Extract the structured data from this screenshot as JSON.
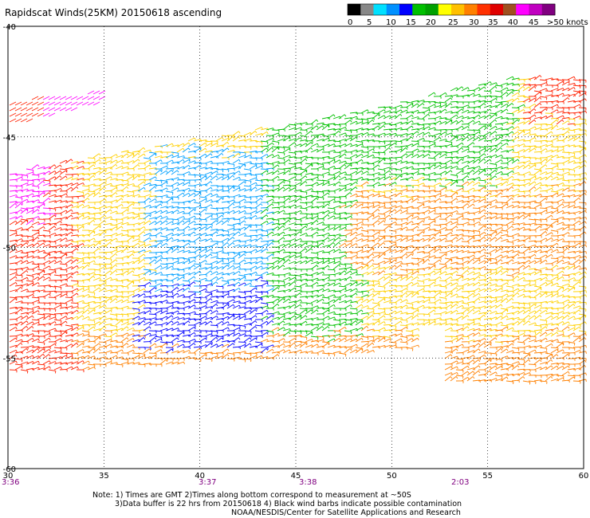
{
  "title": "Rapidscat Winds(25KM) 20150618 ascending",
  "legend": {
    "unit_label": ">50 knots",
    "tick_labels": [
      "0",
      "5",
      "10",
      "15",
      "20",
      "25",
      "30",
      "35",
      "40",
      "45"
    ],
    "colors": [
      "#000000",
      "#888888",
      "#00e0ff",
      "#0090ff",
      "#0000ff",
      "#00c000",
      "#00a000",
      "#ffff00",
      "#ffc000",
      "#ff8000",
      "#ff3000",
      "#e00000",
      "#a05020",
      "#ff00ff",
      "#c000c0",
      "#800080"
    ]
  },
  "axes": {
    "lon_ticks": [
      "30",
      "35",
      "40",
      "45",
      "50",
      "55",
      "60"
    ],
    "lat_ticks": [
      "-40",
      "-45",
      "-50",
      "-55",
      "-60"
    ],
    "lon_range": [
      30,
      60
    ],
    "lat_range": [
      -40,
      -60
    ]
  },
  "pass_times": [
    "3:36",
    "3:37",
    "3:38",
    "2:03"
  ],
  "notes": {
    "line1": "Note: 1) Times are GMT 2)Times along bottom correspond to measurement at ~50S",
    "line2": "3)Data buffer is 22 hrs from 20150618 4) Black wind barbs indicate possible contamination",
    "line3": "NOAA/NESDIS/Center for Satellite Applications and Research"
  },
  "colors": {
    "label_purple": "#800080",
    "grid": "#000000",
    "speed_bands": [
      "#000000",
      "#0000ff",
      "#00a0ff",
      "#00c000",
      "#ffd000",
      "#ff8000",
      "#ff2000",
      "#ff00ff"
    ]
  }
}
